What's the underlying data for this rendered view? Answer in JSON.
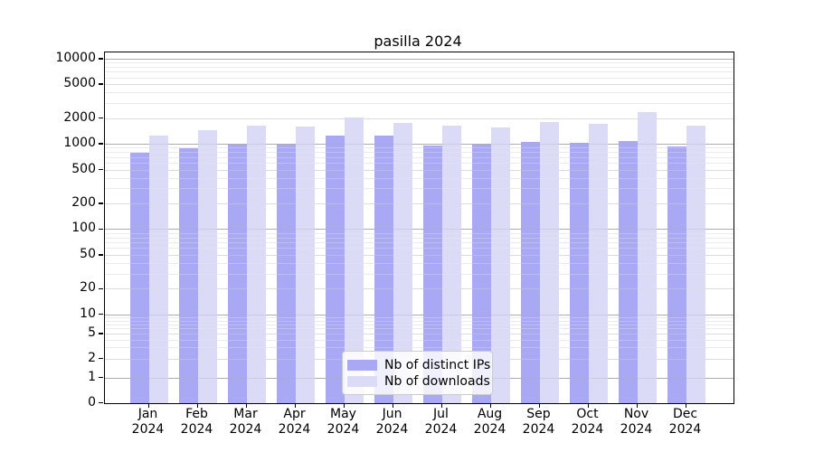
{
  "title": "pasilla 2024",
  "colors": {
    "distinct_ips_bar": "#a8a8f4",
    "downloads_bar": "#dbdbf8",
    "grid_major": "#adadad",
    "grid_mid": "#dcdcdc",
    "grid_minor": "#ebebeb",
    "axis": "#000000",
    "legend_border": "#cccccc"
  },
  "legend": {
    "items": [
      {
        "label": "Nb of distinct IPs",
        "color": "#a8a8f4"
      },
      {
        "label": "Nb of downloads",
        "color": "#dbdbf8"
      }
    ]
  },
  "x_axis": {
    "months": [
      "Jan",
      "Feb",
      "Mar",
      "Apr",
      "May",
      "Jun",
      "Jul",
      "Aug",
      "Sep",
      "Oct",
      "Nov",
      "Dec"
    ],
    "year": "2024"
  },
  "y_axis": {
    "ticks": [
      {
        "label": "10000",
        "value": 10000
      },
      {
        "label": "5000",
        "value": 5000
      },
      {
        "label": "2000",
        "value": 2000
      },
      {
        "label": "1000",
        "value": 1000
      },
      {
        "label": "500",
        "value": 500
      },
      {
        "label": "200",
        "value": 200
      },
      {
        "label": "100",
        "value": 100
      },
      {
        "label": "50",
        "value": 50
      },
      {
        "label": "20",
        "value": 20
      },
      {
        "label": "10",
        "value": 10
      },
      {
        "label": "5",
        "value": 5
      },
      {
        "label": "2",
        "value": 2
      },
      {
        "label": "1",
        "value": 1
      },
      {
        "label": "0",
        "value": 0
      }
    ]
  },
  "chart_data": {
    "type": "bar",
    "title": "pasilla 2024",
    "categories": [
      "Jan 2024",
      "Feb 2024",
      "Mar 2024",
      "Apr 2024",
      "May 2024",
      "Jun 2024",
      "Jul 2024",
      "Aug 2024",
      "Sep 2024",
      "Oct 2024",
      "Nov 2024",
      "Dec 2024"
    ],
    "series": [
      {
        "name": "Nb of distinct IPs",
        "color": "#a8a8f4",
        "values": [
          790,
          880,
          970,
          980,
          1260,
          1260,
          960,
          990,
          1050,
          1030,
          1080,
          930
        ]
      },
      {
        "name": "Nb of downloads",
        "color": "#dbdbf8",
        "values": [
          1250,
          1460,
          1650,
          1580,
          2050,
          1780,
          1640,
          1570,
          1790,
          1700,
          2350,
          1650
        ]
      }
    ],
    "xlabel": "",
    "ylabel": "",
    "yscale": "log-like (symlog: log above 1, linear 0-1)",
    "ylim": [
      0,
      10000
    ],
    "yticks": [
      0,
      1,
      2,
      5,
      10,
      20,
      50,
      100,
      200,
      500,
      1000,
      2000,
      5000,
      10000
    ],
    "grid": true,
    "legend_position": "lower center"
  }
}
